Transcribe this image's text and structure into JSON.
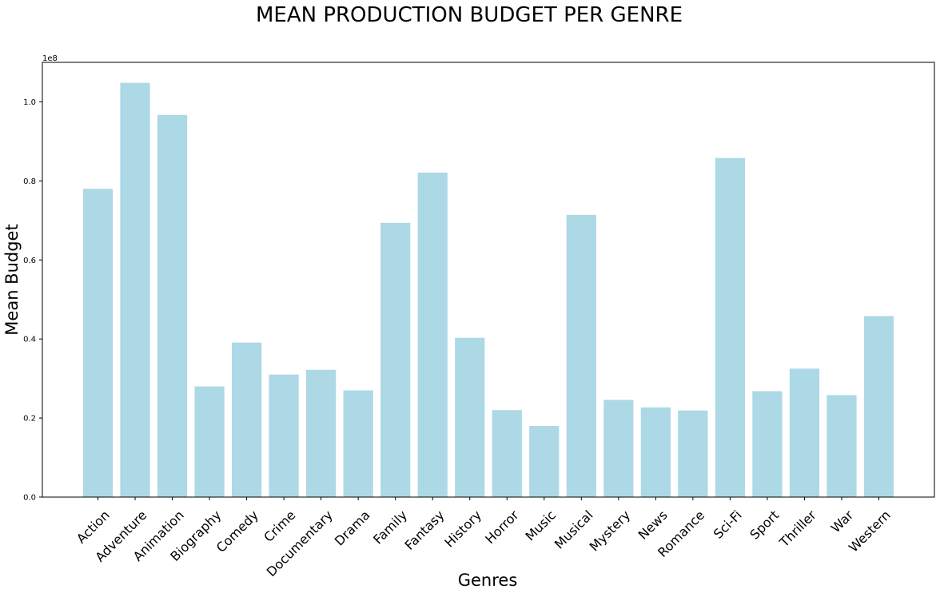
{
  "chart_data": {
    "type": "bar",
    "title": "MEAN PRODUCTION BUDGET PER GENRE",
    "xlabel": "Genres",
    "ylabel": "Mean Budget",
    "scale_label": "1e8",
    "ylim": [
      0,
      1.1
    ],
    "yticks": [
      0.0,
      0.2,
      0.4,
      0.6,
      0.8,
      1.0
    ],
    "ytick_labels": [
      "0.0",
      "0.2",
      "0.4",
      "0.6",
      "0.8",
      "1.0"
    ],
    "grid": false,
    "bar_color": "#add8e6",
    "categories": [
      "Action",
      "Adventure",
      "Animation",
      "Biography",
      "Comedy",
      "Crime",
      "Documentary",
      "Drama",
      "Family",
      "Fantasy",
      "History",
      "Horror",
      "Music",
      "Musical",
      "Mystery",
      "News",
      "Romance",
      "Sci-Fi",
      "Sport",
      "Thriller",
      "War",
      "Western"
    ],
    "values": [
      0.78,
      1.048,
      0.967,
      0.28,
      0.391,
      0.31,
      0.322,
      0.27,
      0.694,
      0.821,
      0.403,
      0.22,
      0.18,
      0.714,
      0.246,
      0.227,
      0.219,
      0.858,
      0.268,
      0.325,
      0.258,
      0.458
    ]
  }
}
